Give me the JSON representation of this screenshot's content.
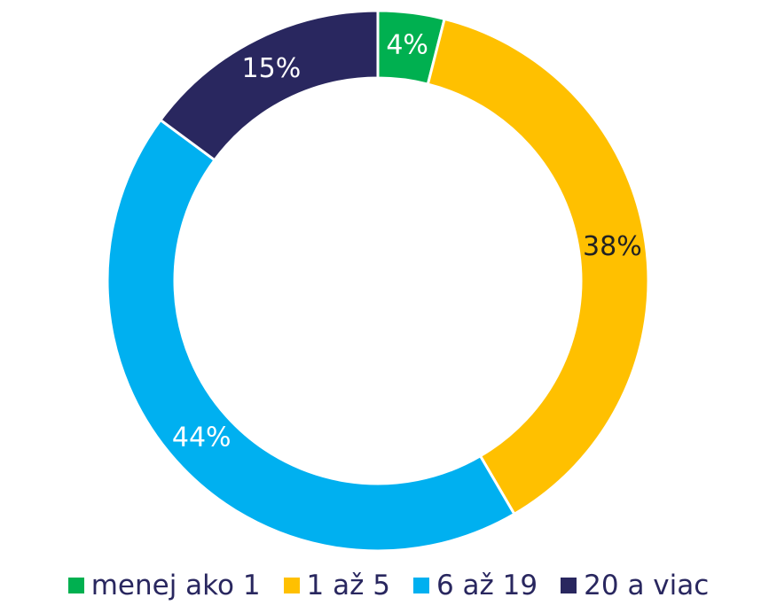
{
  "chart_data": {
    "type": "donut",
    "categories": [
      "menej ako 1",
      "1 až 5",
      "6 až 19",
      "20 a viac"
    ],
    "values": [
      4,
      38,
      44,
      15
    ],
    "value_labels": [
      "4%",
      "38%",
      "44%",
      "15%"
    ],
    "colors": [
      "#00b050",
      "#ffc000",
      "#00b0f0",
      "#29275f"
    ],
    "label_colors": [
      "#ffffff",
      "#222222",
      "#ffffff",
      "#ffffff"
    ],
    "legend": "bottom"
  }
}
